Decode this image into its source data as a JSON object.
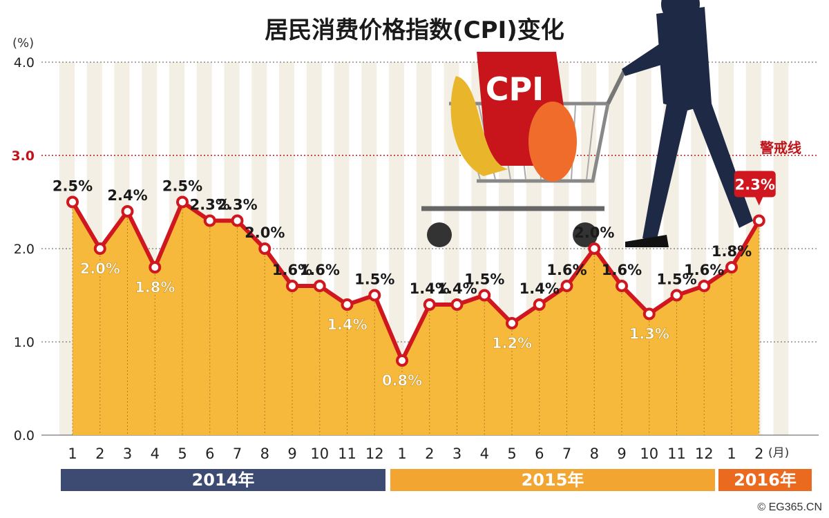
{
  "title": "居民消费价格指数(CPI)变化",
  "unit_label": "(%)",
  "month_unit": "(月)",
  "warning_label": "警戒线",
  "copyright": "© EG365.CN",
  "years": [
    {
      "label": "2014年",
      "color": "#3d4b73"
    },
    {
      "label": "2015年",
      "color": "#f2a531"
    },
    {
      "label": "2016年",
      "color": "#ea6a1f"
    }
  ],
  "illustration": {
    "bag_text": "CPI",
    "icon": "shopping-cart-icon"
  },
  "colors": {
    "line": "#d0171f",
    "fill": "#f6b93b",
    "stripe": "#f4efe4",
    "warning": "#c0141b",
    "highlight": "#d0171f"
  },
  "chart_data": {
    "type": "area",
    "title": "居民消费价格指数(CPI)变化",
    "ylabel": "(%)",
    "xlabel": "(月)",
    "ylim": [
      0,
      4.0
    ],
    "yticks": [
      "0.0",
      "1.0",
      "2.0",
      "3.0",
      "4.0"
    ],
    "warning_line": 3.0,
    "categories": [
      "1",
      "2",
      "3",
      "4",
      "5",
      "6",
      "7",
      "8",
      "9",
      "10",
      "11",
      "12",
      "1",
      "2",
      "3",
      "4",
      "5",
      "6",
      "7",
      "8",
      "9",
      "10",
      "11",
      "12",
      "1",
      "2"
    ],
    "values": [
      2.5,
      2.0,
      2.4,
      1.8,
      2.5,
      2.3,
      2.3,
      2.0,
      1.6,
      1.6,
      1.4,
      1.5,
      0.8,
      1.4,
      1.4,
      1.5,
      1.2,
      1.4,
      1.6,
      2.0,
      1.6,
      1.3,
      1.5,
      1.6,
      1.8,
      2.3
    ],
    "data_labels": [
      "2.5%",
      "2.0%",
      "2.4%",
      "1.8%",
      "2.5%",
      "2.3%",
      "2.3%",
      "2.0%",
      "1.6%",
      "1.6%",
      "1.4%",
      "1.5%",
      "0.8%",
      "1.4%",
      "1.4%",
      "1.5%",
      "1.2%",
      "1.4%",
      "1.6%",
      "2.0%",
      "1.6%",
      "1.3%",
      "1.5%",
      "1.6%",
      "1.8%",
      "2.3%"
    ],
    "grid": true
  }
}
